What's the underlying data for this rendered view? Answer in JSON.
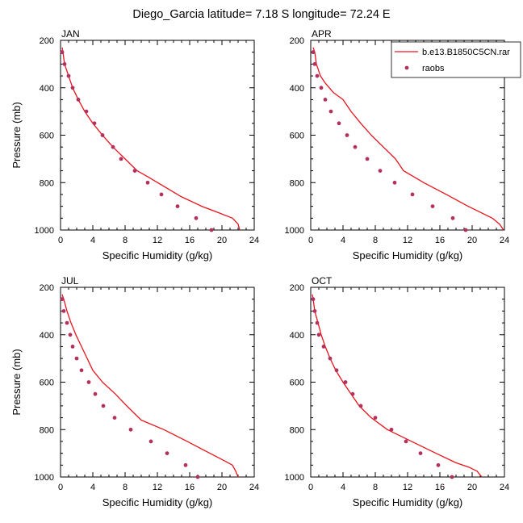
{
  "title": "Diego_Garcia  latitude= 7.18 S longitude= 72.24 E",
  "colors": {
    "model": "#e8141b",
    "obs": "#b3315f",
    "axes": "#000000"
  },
  "legend": {
    "placement": "top-right",
    "model_label": "b.e13.B1850C5CN.rar",
    "obs_label": "raobs"
  },
  "chart_data": [
    {
      "type": "line",
      "panel_label": "JAN",
      "xlabel": "Specific Humidity (g/kg)",
      "ylabel": "Pressure (mb)",
      "xlim": [
        0,
        24
      ],
      "ylim": [
        1000,
        200
      ],
      "y_reversed": true,
      "xticks": [
        0,
        4,
        8,
        12,
        16,
        20,
        24
      ],
      "yticks": [
        200,
        400,
        600,
        800,
        1000
      ],
      "series": [
        {
          "name": "b.e13.B1850C5CN.rar",
          "kind": "line",
          "x": [
            0.2,
            0.3,
            0.5,
            1.0,
            1.5,
            2.2,
            3.0,
            4.0,
            5.2,
            6.5,
            8.0,
            9.5,
            10.8,
            13.0,
            15.0,
            17.5,
            19.8,
            21.3,
            22.0,
            22.2
          ],
          "y": [
            230,
            250,
            300,
            350,
            400,
            450,
            500,
            550,
            600,
            650,
            700,
            750,
            775,
            820,
            860,
            900,
            930,
            950,
            975,
            1000
          ]
        },
        {
          "name": "raobs",
          "kind": "markers",
          "x": [
            0.2,
            0.5,
            1.0,
            1.5,
            2.2,
            3.2,
            4.2,
            5.2,
            6.5,
            7.5,
            9.2,
            10.8,
            12.5,
            14.5,
            16.8,
            18.7
          ],
          "y": [
            250,
            300,
            350,
            400,
            450,
            500,
            550,
            600,
            650,
            700,
            750,
            800,
            850,
            900,
            950,
            1000
          ]
        }
      ]
    },
    {
      "type": "line",
      "panel_label": "APR",
      "xlabel": "Specific Humidity (g/kg)",
      "ylabel": "",
      "xlim": [
        0,
        24
      ],
      "ylim": [
        1000,
        200
      ],
      "y_reversed": true,
      "xticks": [
        0,
        4,
        8,
        12,
        16,
        20,
        24
      ],
      "yticks": [
        200,
        400,
        600,
        800,
        1000
      ],
      "series": [
        {
          "name": "b.e13.B1850C5CN.rar",
          "kind": "line",
          "x": [
            0.3,
            0.5,
            0.7,
            1.2,
            1.8,
            2.8,
            4.0,
            5.0,
            6.2,
            7.5,
            9.0,
            10.5,
            11.5,
            14.0,
            16.8,
            19.5,
            21.3,
            22.5,
            23.4,
            23.9
          ],
          "y": [
            230,
            250,
            300,
            350,
            380,
            420,
            450,
            500,
            550,
            600,
            650,
            700,
            750,
            800,
            850,
            900,
            930,
            950,
            975,
            1000
          ]
        },
        {
          "name": "raobs",
          "kind": "markers",
          "x": [
            0.3,
            0.5,
            0.8,
            1.3,
            1.8,
            2.5,
            3.5,
            4.5,
            5.5,
            7.0,
            8.6,
            10.4,
            12.6,
            15.1,
            17.6,
            19.2
          ],
          "y": [
            250,
            300,
            350,
            400,
            450,
            500,
            550,
            600,
            650,
            700,
            750,
            800,
            850,
            900,
            950,
            1000
          ]
        }
      ]
    },
    {
      "type": "line",
      "panel_label": "JUL",
      "xlabel": "Specific Humidity (g/kg)",
      "ylabel": "Pressure (mb)",
      "xlim": [
        0,
        24
      ],
      "ylim": [
        1000,
        200
      ],
      "y_reversed": true,
      "xticks": [
        0,
        4,
        8,
        12,
        16,
        20,
        24
      ],
      "yticks": [
        200,
        400,
        600,
        800,
        1000
      ],
      "series": [
        {
          "name": "b.e13.B1850C5CN.rar",
          "kind": "line",
          "x": [
            0.2,
            0.4,
            0.8,
            1.3,
            1.9,
            2.6,
            3.3,
            4.0,
            5.2,
            6.8,
            8.2,
            10.0,
            12.8,
            15.7,
            18.5,
            20.5,
            21.3,
            21.7,
            22.0
          ],
          "y": [
            230,
            250,
            300,
            350,
            400,
            450,
            500,
            550,
            600,
            650,
            700,
            760,
            800,
            850,
            900,
            935,
            950,
            975,
            1000
          ]
        },
        {
          "name": "raobs",
          "kind": "markers",
          "x": [
            0.2,
            0.4,
            0.8,
            1.2,
            1.5,
            2.0,
            2.6,
            3.5,
            4.3,
            5.3,
            6.7,
            8.7,
            11.2,
            13.2,
            15.5,
            17.0
          ],
          "y": [
            250,
            300,
            350,
            400,
            450,
            500,
            550,
            600,
            650,
            700,
            750,
            800,
            850,
            900,
            950,
            1000
          ]
        }
      ]
    },
    {
      "type": "line",
      "panel_label": "OCT",
      "xlabel": "Specific Humidity (g/kg)",
      "ylabel": "",
      "xlim": [
        0,
        24
      ],
      "ylim": [
        1000,
        200
      ],
      "y_reversed": true,
      "xticks": [
        0,
        4,
        8,
        12,
        16,
        20,
        24
      ],
      "yticks": [
        200,
        400,
        600,
        800,
        1000
      ],
      "series": [
        {
          "name": "b.e13.B1850C5CN.rar",
          "kind": "line",
          "x": [
            0.2,
            0.3,
            0.5,
            0.9,
            1.3,
            1.8,
            2.4,
            3.1,
            4.0,
            5.0,
            6.0,
            7.5,
            9.5,
            12.5,
            15.5,
            18.0,
            19.7,
            20.6,
            21.2
          ],
          "y": [
            230,
            250,
            300,
            350,
            400,
            450,
            500,
            550,
            600,
            650,
            700,
            750,
            800,
            850,
            900,
            940,
            960,
            975,
            1000
          ]
        },
        {
          "name": "raobs",
          "kind": "markers",
          "x": [
            0.3,
            0.5,
            0.8,
            1.0,
            1.6,
            2.4,
            3.2,
            4.3,
            5.2,
            6.2,
            8.0,
            10.0,
            11.8,
            13.6,
            15.8,
            17.5
          ],
          "y": [
            250,
            300,
            350,
            400,
            450,
            500,
            550,
            600,
            650,
            700,
            750,
            800,
            850,
            900,
            950,
            1000
          ]
        }
      ]
    }
  ]
}
